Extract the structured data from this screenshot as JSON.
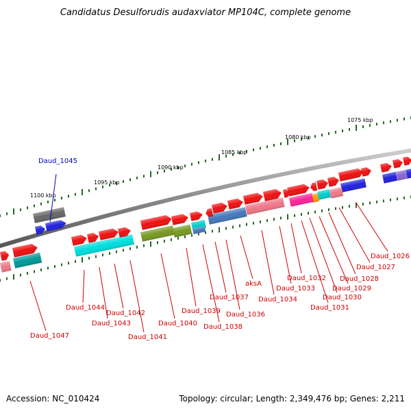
{
  "title": "Candidatus Desulforudis audaxviator MP104C, complete genome",
  "accession_label": "Accession: NC_010424",
  "summary_label": "Topology: circular; Length: 2,349,476 bp; Genes: 2,211",
  "scale_labels": [
    {
      "text": "1075 kbp",
      "kbp": 1075
    },
    {
      "text": "1080 kbp",
      "kbp": 1080
    },
    {
      "text": "1085 kbp",
      "kbp": 1085
    },
    {
      "text": "1090 kbp",
      "kbp": 1090
    },
    {
      "text": "1095 kbp",
      "kbp": 1095
    },
    {
      "text": "1100 kbp",
      "kbp": 1100
    }
  ],
  "genes": [
    {
      "id": "Daud_1026",
      "strand": "+",
      "color": "#ee1111"
    },
    {
      "id": "Daud_1027",
      "strand": "+",
      "color": "#ee1111"
    },
    {
      "id": "Daud_1028",
      "strand": "+",
      "color": "#2222dd"
    },
    {
      "id": "Daud_1029",
      "strand": "+",
      "color": "#ee1111"
    },
    {
      "id": "Daud_1030",
      "strand": "+",
      "color": "#ee1111"
    },
    {
      "id": "Daud_1031",
      "strand": "+",
      "color": "#00cccc"
    },
    {
      "id": "Daud_1032",
      "strand": "-",
      "color": "#ee1111"
    },
    {
      "id": "Daud_1033",
      "strand": "+",
      "color": "#ff2299"
    },
    {
      "id": "Daud_1034",
      "strand": "+",
      "color": "#ee1111"
    },
    {
      "id": "aksA",
      "strand": "+",
      "color": "#ee1111"
    },
    {
      "id": "Daud_1036",
      "strand": "+",
      "color": "#4477bb"
    },
    {
      "id": "Daud_1037",
      "strand": "+",
      "color": "#ee1111"
    },
    {
      "id": "Daud_1038",
      "strand": "+",
      "color": "#ee1111"
    },
    {
      "id": "Daud_1039",
      "strand": "+",
      "color": "#00cccc"
    },
    {
      "id": "Daud_1040",
      "strand": "+",
      "color": "#ee1111"
    },
    {
      "id": "Daud_1041",
      "strand": "+",
      "color": "#ee1111"
    },
    {
      "id": "Daud_1042",
      "strand": "+",
      "color": "#00dddd"
    },
    {
      "id": "Daud_1043",
      "strand": "+",
      "color": "#ee1111"
    },
    {
      "id": "Daud_1044",
      "strand": "+",
      "color": "#ee1111"
    },
    {
      "id": "Daud_1045",
      "strand": "+",
      "color": "#2222dd",
      "highlighted": true
    },
    {
      "id": "Daud_1047",
      "strand": "+",
      "color": "#ee1111"
    }
  ],
  "colors": {
    "backbone": "#888888",
    "tick": "#226622",
    "label_default": "#cc0000",
    "label_highlight": "#0000bb"
  }
}
